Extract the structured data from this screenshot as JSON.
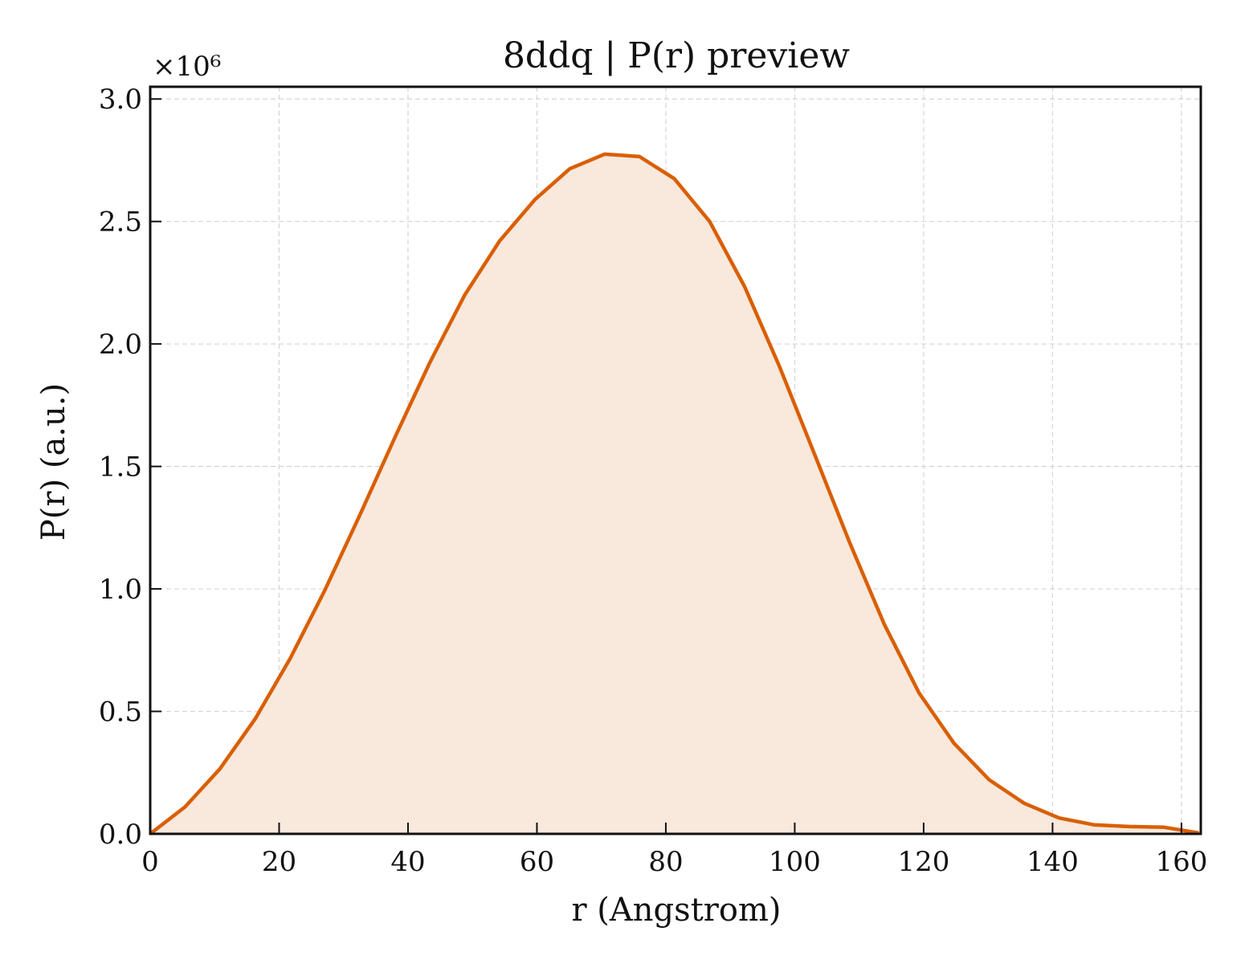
{
  "chart_data": {
    "type": "area",
    "title": "8ddq | P(r) preview",
    "xlabel": "r (Angstrom)",
    "ylabel": "P(r) (a.u.)",
    "y_multiplier": "×10⁶",
    "xlim": [
      0,
      163
    ],
    "ylim": [
      0,
      3.05
    ],
    "x_ticks": [
      0,
      20,
      40,
      60,
      80,
      100,
      120,
      140,
      160
    ],
    "y_ticks": [
      0.0,
      0.5,
      1.0,
      1.5,
      2.0,
      2.5,
      3.0
    ],
    "x_tick_labels": [
      "0",
      "20",
      "40",
      "60",
      "80",
      "100",
      "120",
      "140",
      "160"
    ],
    "y_tick_labels": [
      "0.0",
      "0.5",
      "1.0",
      "1.5",
      "2.0",
      "2.5",
      "3.0"
    ],
    "grid": true,
    "series": [
      {
        "color": "#d95f02",
        "fill_color": "#f9e8dc",
        "x": [
          0,
          5.4,
          10.8,
          16.3,
          21.7,
          27.1,
          32.5,
          38.0,
          43.4,
          48.8,
          54.2,
          59.7,
          65.1,
          70.5,
          75.9,
          81.3,
          86.8,
          92.2,
          97.6,
          103.0,
          108.5,
          113.9,
          119.3,
          124.7,
          130.2,
          135.6,
          141.0,
          146.4,
          151.9,
          157.3,
          162.7
        ],
        "y": [
          0.0,
          0.11,
          0.265,
          0.47,
          0.715,
          0.995,
          1.3,
          1.62,
          1.925,
          2.2,
          2.42,
          2.59,
          2.715,
          2.775,
          2.765,
          2.675,
          2.5,
          2.235,
          1.91,
          1.555,
          1.19,
          0.855,
          0.575,
          0.37,
          0.22,
          0.125,
          0.065,
          0.037,
          0.03,
          0.027,
          0.004
        ]
      }
    ]
  }
}
